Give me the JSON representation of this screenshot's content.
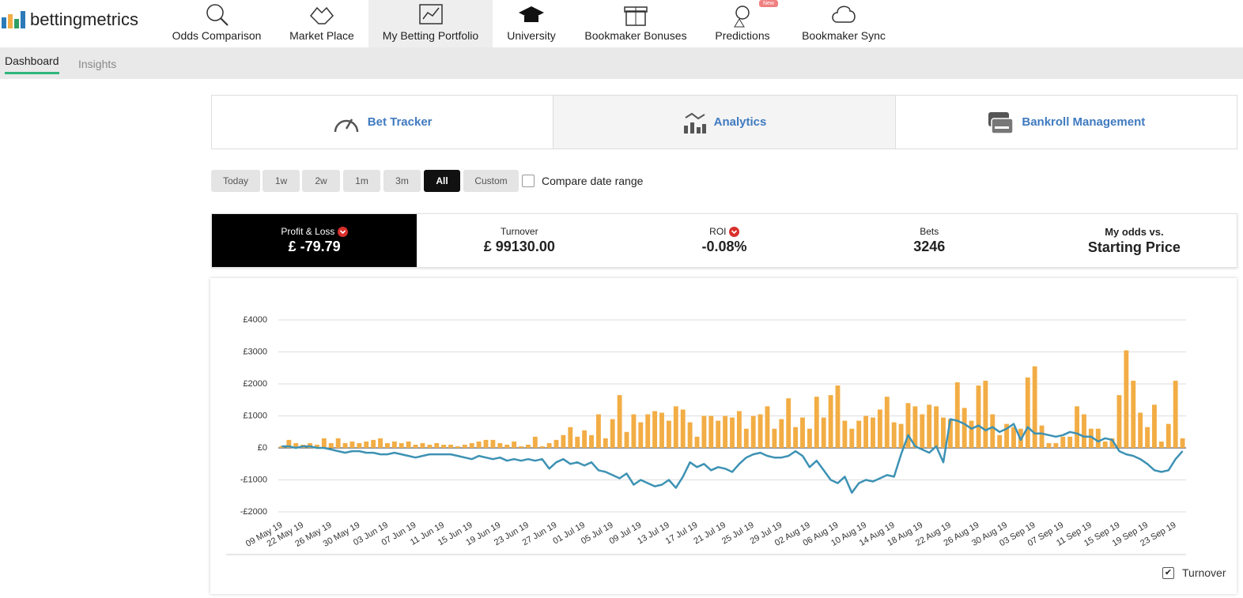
{
  "nav": {
    "logo": "bettingmetrics",
    "items": [
      "Odds Comparison",
      "Market Place",
      "My Betting Portfolio",
      "University",
      "Bookmaker Bonuses",
      "Predictions",
      "Bookmaker Sync"
    ],
    "badge": "New"
  },
  "subnav": [
    "Dashboard",
    "Insights"
  ],
  "tabs": [
    "Bet Tracker",
    "Analytics",
    "Bankroll Management"
  ],
  "ranges": [
    "Today",
    "1w",
    "2w",
    "1m",
    "3m",
    "All",
    "Custom"
  ],
  "compare": "Compare date range",
  "stats": [
    {
      "label": "Profit & Loss",
      "value": "£ -79.79"
    },
    {
      "label": "Turnover",
      "value": "£ 99130.00"
    },
    {
      "label": "ROI",
      "value": "-0.08%"
    },
    {
      "label": "Bets",
      "value": "3246"
    },
    {
      "label": "My odds vs.",
      "value": "Starting Price"
    }
  ],
  "chart_data": {
    "type": "bar",
    "categories": [
      "09 May 19",
      null,
      null,
      "22 May 19",
      null,
      null,
      null,
      "26 May 19",
      null,
      null,
      null,
      "30 May 19",
      null,
      null,
      null,
      "03 Jun 19",
      null,
      null,
      null,
      "07 Jun 19",
      null,
      null,
      null,
      "11 Jun 19",
      null,
      null,
      null,
      "15 Jun 19",
      null,
      null,
      null,
      "19 Jun 19",
      null,
      null,
      null,
      "23 Jun 19",
      null,
      null,
      null,
      "27 Jun 19",
      null,
      null,
      null,
      "01 Jul 19",
      null,
      null,
      null,
      "05 Jul 19",
      null,
      null,
      null,
      "09 Jul 19",
      null,
      null,
      null,
      "13 Jul 19",
      null,
      null,
      null,
      "17 Jul 19",
      null,
      null,
      null,
      "21 Jul 19",
      null,
      null,
      null,
      "25 Jul 19",
      null,
      null,
      null,
      "29 Jul 19",
      null,
      null,
      null,
      "02 Aug 19",
      null,
      null,
      null,
      "06 Aug 19",
      null,
      null,
      null,
      "10 Aug 19",
      null,
      null,
      null,
      "14 Aug 19",
      null,
      null,
      null,
      "18 Aug 19",
      null,
      null,
      null,
      "22 Aug 19",
      null,
      null,
      null,
      "26 Aug 19",
      null,
      null,
      null,
      "30 Aug 19",
      null,
      null,
      null,
      "03 Sep 19",
      null,
      null,
      null,
      "07 Sep 19",
      null,
      null,
      null,
      "11 Sep 19",
      null,
      null,
      null,
      "15 Sep 19",
      null,
      null,
      null,
      "19 Sep 19",
      null,
      null,
      null,
      "23 Sep 19",
      null
    ],
    "series": [
      {
        "name": "Turnover",
        "type": "bar",
        "color": "#f2ad45",
        "values": [
          60,
          250,
          150,
          100,
          150,
          100,
          300,
          150,
          300,
          150,
          200,
          150,
          200,
          250,
          300,
          150,
          200,
          150,
          200,
          100,
          150,
          100,
          150,
          100,
          100,
          50,
          100,
          150,
          200,
          250,
          250,
          150,
          100,
          200,
          50,
          100,
          350,
          50,
          150,
          250,
          400,
          650,
          350,
          550,
          400,
          1050,
          300,
          900,
          1650,
          500,
          1050,
          800,
          1050,
          1150,
          1100,
          850,
          1300,
          1200,
          800,
          350,
          1000,
          1000,
          850,
          1000,
          950,
          1150,
          600,
          1000,
          1050,
          1300,
          600,
          900,
          1550,
          650,
          950,
          600,
          1600,
          950,
          1650,
          1950,
          850,
          600,
          850,
          1000,
          950,
          1200,
          1600,
          800,
          750,
          1400,
          1300,
          1050,
          1350,
          1300,
          950,
          900,
          2050,
          1250,
          850,
          1950,
          2100,
          1050,
          400,
          750,
          650,
          600,
          2200,
          2550,
          700,
          150,
          150,
          350,
          350,
          1300,
          1050,
          600,
          600,
          200,
          300,
          1650,
          3050,
          2100,
          1100,
          650,
          1350,
          200,
          750,
          2100,
          300
        ]
      },
      {
        "type": "line",
        "color": "#3d92b4",
        "values": [
          50,
          50,
          0,
          50,
          50,
          0,
          0,
          -50,
          -100,
          -150,
          -100,
          -100,
          -150,
          -150,
          -200,
          -200,
          -150,
          -200,
          -250,
          -300,
          -250,
          -200,
          -200,
          -200,
          -200,
          -250,
          -300,
          -350,
          -250,
          -300,
          -350,
          -300,
          -400,
          -350,
          -400,
          -350,
          -400,
          -350,
          -650,
          -450,
          -350,
          -500,
          -450,
          -550,
          -450,
          -700,
          -750,
          -850,
          -950,
          -800,
          -1150,
          -1000,
          -1100,
          -1200,
          -1150,
          -1000,
          -1250,
          -900,
          -450,
          -600,
          -500,
          -700,
          -600,
          -650,
          -750,
          -500,
          -300,
          -200,
          -150,
          -250,
          -300,
          -300,
          -250,
          -100,
          -250,
          -600,
          -400,
          -700,
          -1000,
          -1100,
          -900,
          -1400,
          -1100,
          -1000,
          -1050,
          -950,
          -850,
          -900,
          -200,
          400,
          50,
          -50,
          -150,
          50,
          -450,
          900,
          850,
          750,
          600,
          700,
          550,
          650,
          500,
          600,
          750,
          250,
          650,
          450,
          450,
          400,
          350,
          400,
          500,
          450,
          350,
          350,
          200,
          300,
          250,
          -100,
          -200,
          -250,
          -350,
          -500,
          -700,
          -750,
          -700,
          -350,
          -100
        ]
      }
    ],
    "ylim": [
      -2000,
      4000
    ],
    "yticks": [
      {
        "value": -2000,
        "label": "-£2000"
      },
      {
        "value": -1000,
        "label": "-£1000"
      },
      {
        "value": 0,
        "label": "£0"
      },
      {
        "value": 1000,
        "label": "£1000"
      },
      {
        "value": 2000,
        "label": "£2000"
      },
      {
        "value": 3000,
        "label": "£3000"
      },
      {
        "value": 4000,
        "label": "£4000"
      }
    ],
    "grid": true
  }
}
